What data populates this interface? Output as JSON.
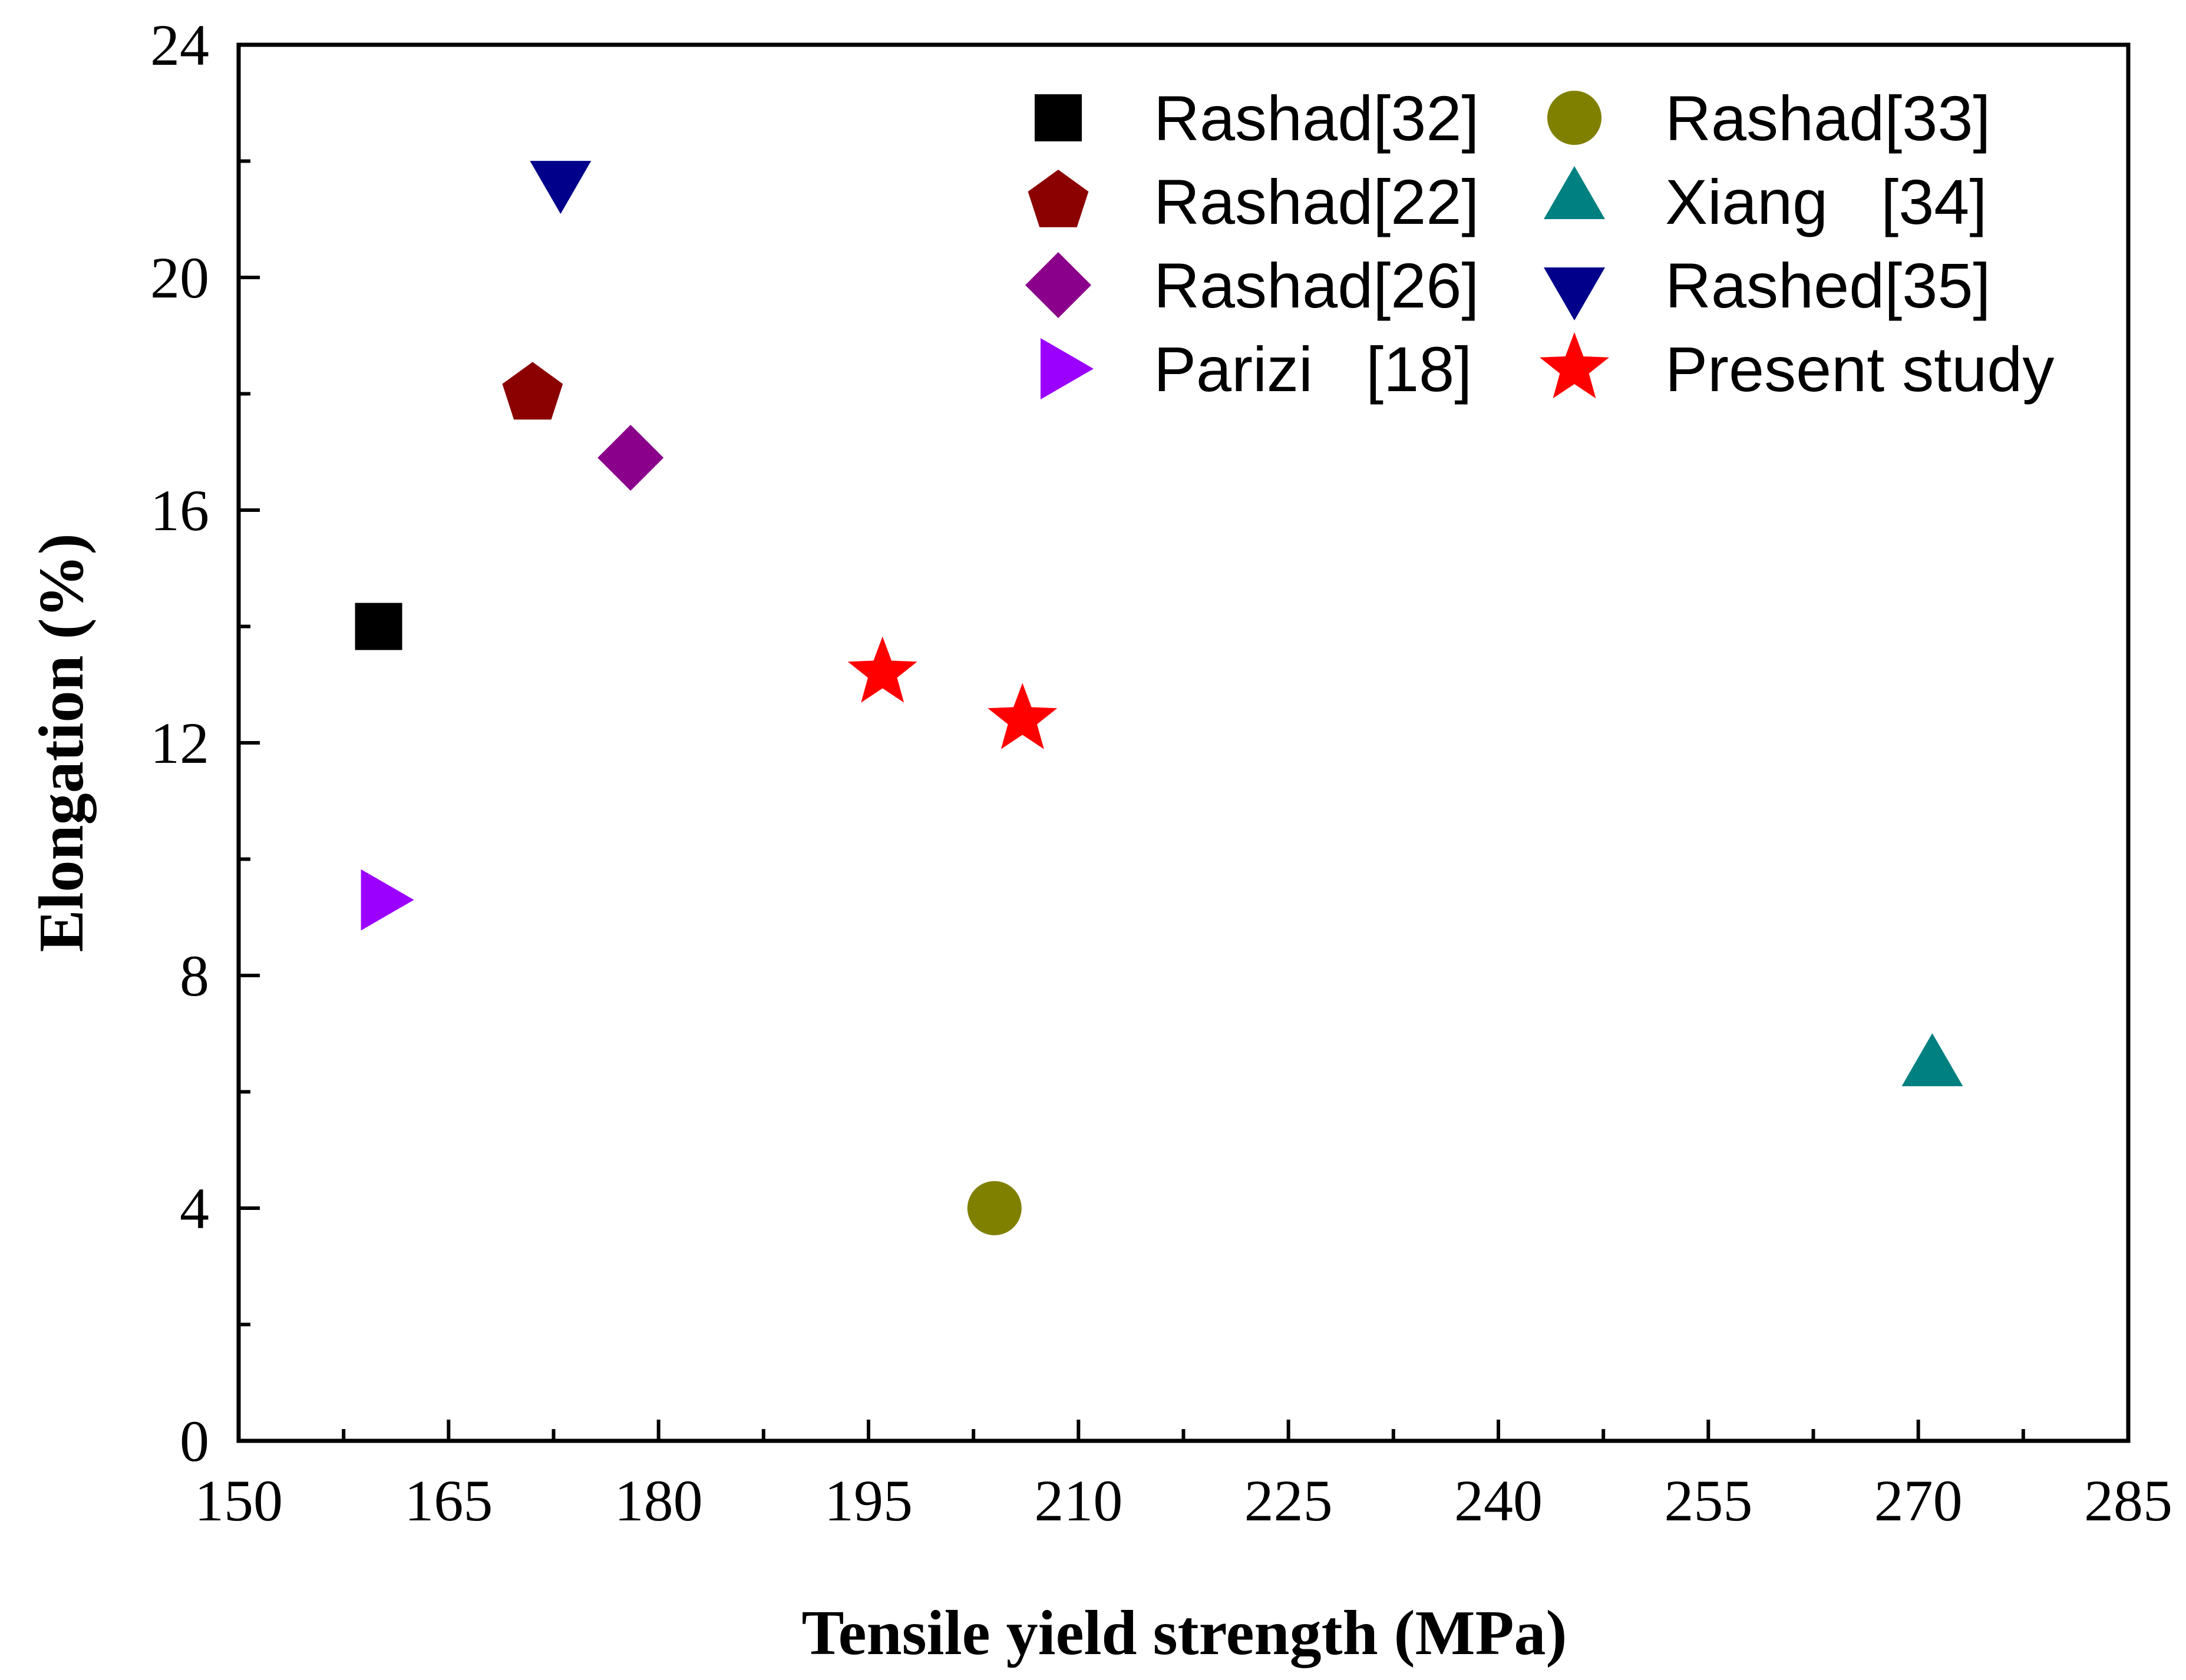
{
  "chart_data": {
    "type": "scatter",
    "title": "",
    "xlabel": "Tensile yield strength (MPa)",
    "ylabel": "Elongation (%)",
    "xlim": [
      150,
      285
    ],
    "ylim": [
      0,
      24
    ],
    "x_ticks": [
      150,
      165,
      180,
      195,
      210,
      225,
      240,
      255,
      270,
      285
    ],
    "y_ticks": [
      0,
      4,
      8,
      12,
      16,
      20,
      24
    ],
    "x_tick_labels": [
      "150",
      "165",
      "180",
      "195",
      "210",
      "225",
      "240",
      "255",
      "270",
      "285"
    ],
    "y_tick_labels": [
      "0",
      "4",
      "8",
      "12",
      "16",
      "20",
      "24"
    ],
    "grid": false,
    "legend_position": "top-right",
    "series": [
      {
        "name": "Rashad[32]",
        "marker": "square",
        "color": "#000000",
        "points": [
          [
            160,
            14.0
          ]
        ]
      },
      {
        "name": "Rashad[33]",
        "marker": "circle",
        "color": "#808000",
        "points": [
          [
            204,
            4.0
          ]
        ]
      },
      {
        "name": "Rashad[22]",
        "marker": "pentagon",
        "color": "#8B0000",
        "points": [
          [
            171,
            18.0
          ]
        ]
      },
      {
        "name": "Xiang   [34]",
        "marker": "triangle-up",
        "color": "#008080",
        "points": [
          [
            271,
            6.4
          ]
        ]
      },
      {
        "name": "Rashad[26]",
        "marker": "diamond",
        "color": "#8B008B",
        "points": [
          [
            178,
            16.9
          ]
        ]
      },
      {
        "name": "Rashed[35]",
        "marker": "triangle-down",
        "color": "#00008B",
        "points": [
          [
            173,
            21.7
          ]
        ]
      },
      {
        "name": "Parizi   [18]",
        "marker": "triangle-right",
        "color": "#9B00FF",
        "points": [
          [
            160,
            9.3
          ]
        ]
      },
      {
        "name": "Present study",
        "marker": "star",
        "color": "#FF0000",
        "points": [
          [
            196,
            13.2
          ],
          [
            206,
            12.4
          ]
        ]
      }
    ]
  }
}
